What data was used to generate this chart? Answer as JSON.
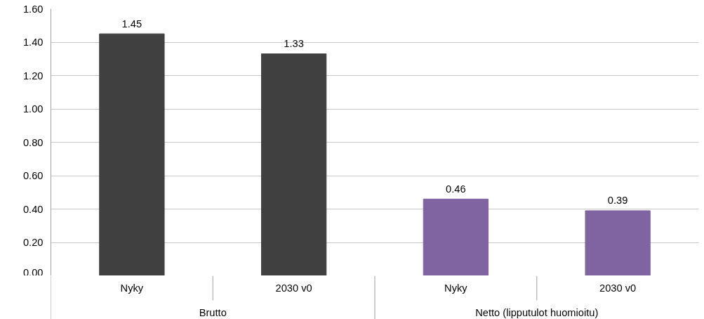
{
  "chart_data": {
    "type": "bar",
    "categories": [
      "Nyky",
      "2030 v0",
      "Nyky",
      "2030 v0"
    ],
    "values": [
      1.45,
      1.33,
      0.46,
      0.39
    ],
    "colors": [
      "#404040",
      "#404040",
      "#8064a2",
      "#8064a2"
    ],
    "ylim": [
      0,
      1.6
    ],
    "yticks": [
      {
        "value": 0,
        "label": "0.00"
      },
      {
        "value": 0.2,
        "label": "0.20"
      },
      {
        "value": 0.4,
        "label": "0.40"
      },
      {
        "value": 0.6,
        "label": "0.60"
      },
      {
        "value": 0.8,
        "label": "0.80"
      },
      {
        "value": 1.0,
        "label": "1.00"
      },
      {
        "value": 1.2,
        "label": "1.20"
      },
      {
        "value": 1.4,
        "label": "1.40"
      },
      {
        "value": 1.6,
        "label": "1.60"
      }
    ],
    "grid": "y",
    "data_labels": true,
    "annotations": [
      "Brutto",
      "Netto (lipputulot huomioitu)"
    ]
  }
}
